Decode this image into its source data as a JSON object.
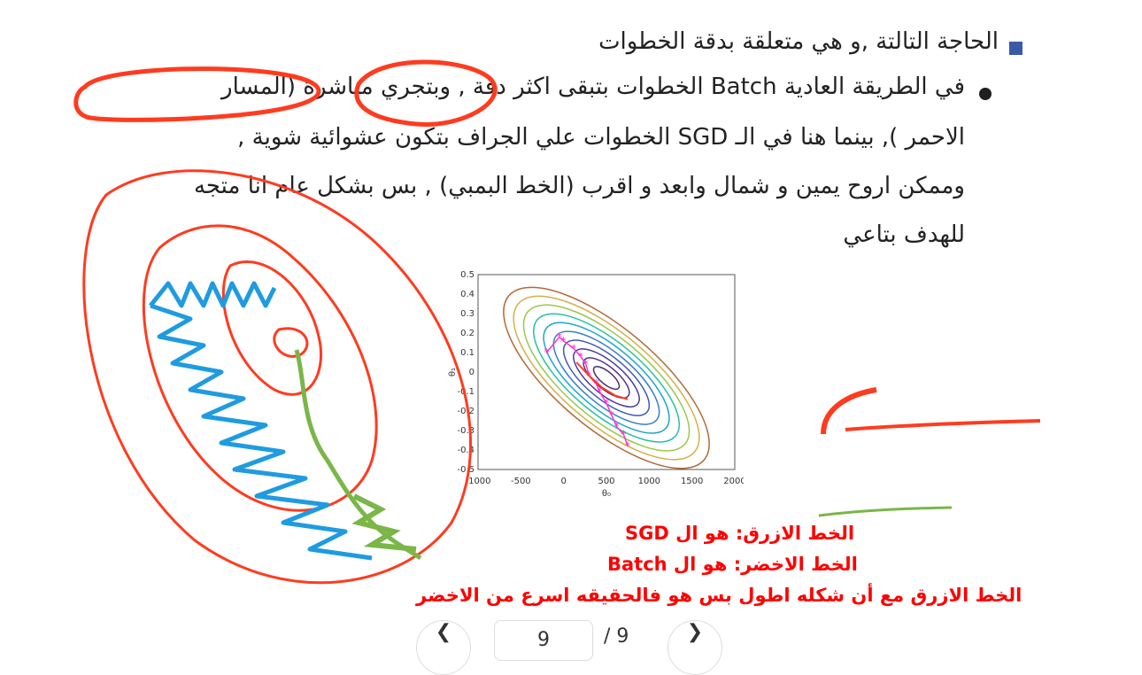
{
  "slide": {
    "bullets": {
      "l1": "الحاجة التالتة ,و هي متعلقة بدقة الخطوات",
      "l2": "في الطريقة العادية Batch الخطوات بتبقى اكثر دقة , وبتجري مباشرة (المسار",
      "l3": "الاحمر ), بينما هنا في الـ SGD الخطوات علي الجراف بتكون عشوائية شوية ,",
      "l4": "وممكن اروح يمين و شمال وابعد و اقرب (الخط البمبي) , بس بشكل عام انا متجه",
      "l5": "للهدف بتاعي"
    },
    "captions": [
      "الخط الازرق: هو ال SGD",
      "الخط الاخضر: هو ال Batch",
      "الخط الازرق مع أن شكله اطول بس هو فالحقيقه اسرع من الاخضر"
    ],
    "colors": {
      "bullet_square": "#3b59a5",
      "caption_red": "#ff0000",
      "annotation_red": "#ff3b1f",
      "annotation_blue": "#1f9be0",
      "annotation_green": "#7ab648",
      "path_magenta": "#ff33cc"
    }
  },
  "chart_data": {
    "type": "scatter",
    "xlabel": "θ₀",
    "ylabel": "θ₁",
    "xlim": [
      -1000,
      2000
    ],
    "ylim": [
      -0.5,
      0.5
    ],
    "x_ticks": [
      "-1000",
      "-500",
      "0",
      "500",
      "1000",
      "1500",
      "2000"
    ],
    "y_ticks": [
      "0.5",
      "0.4",
      "0.3",
      "0.2",
      "0.1",
      "0",
      "-0.1",
      "-0.2",
      "-0.3",
      "-0.4",
      "-0.5"
    ],
    "sgd_points": [
      {
        "x": -200,
        "y": 0.1
      },
      {
        "x": -50,
        "y": 0.18
      },
      {
        "x": 0,
        "y": 0.16
      },
      {
        "x": 120,
        "y": 0.12
      },
      {
        "x": 200,
        "y": 0.08
      },
      {
        "x": 260,
        "y": 0.04
      },
      {
        "x": 300,
        "y": -0.02
      },
      {
        "x": 380,
        "y": -0.06
      },
      {
        "x": 420,
        "y": -0.1
      },
      {
        "x": 500,
        "y": -0.16
      },
      {
        "x": 560,
        "y": -0.22
      },
      {
        "x": 620,
        "y": -0.28
      },
      {
        "x": 700,
        "y": -0.32
      },
      {
        "x": 750,
        "y": -0.38
      }
    ],
    "batch_points": [
      {
        "x": 150,
        "y": 0.05
      },
      {
        "x": 300,
        "y": -0.02
      },
      {
        "x": 450,
        "y": -0.08
      },
      {
        "x": 600,
        "y": -0.12
      },
      {
        "x": 750,
        "y": -0.14
      }
    ]
  },
  "pager": {
    "prev_icon": "chevron-left-icon",
    "next_icon": "chevron-right-icon",
    "current_page": "9",
    "total_label": "/ 9"
  }
}
